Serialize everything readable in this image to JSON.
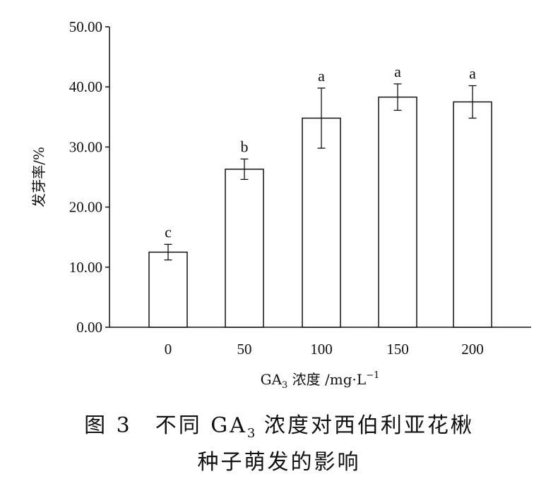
{
  "chart_data": {
    "type": "bar",
    "categories": [
      "0",
      "50",
      "100",
      "150",
      "200"
    ],
    "values": [
      12.5,
      26.3,
      34.8,
      38.3,
      37.5
    ],
    "error": [
      1.3,
      1.7,
      5.0,
      2.2,
      2.7
    ],
    "significance": [
      "c",
      "b",
      "a",
      "a",
      "a"
    ],
    "ylim": [
      0,
      50
    ],
    "yticks": [
      "0.00",
      "10.00",
      "20.00",
      "30.00",
      "40.00",
      "50.00"
    ],
    "ylabel": "发芽率/%",
    "xlabel": {
      "pre": "GA",
      "sub": "3",
      "mid": " 浓度 /mg·L",
      "sup": "−1"
    },
    "grid": false,
    "bar_fill": "#ffffff",
    "bar_stroke": "#111111"
  },
  "caption": {
    "line1_pre": "图 3　不同 GA",
    "line1_sub": "3",
    "line1_post": " 浓度对西伯利亚花楸",
    "line2": "种子萌发的影响"
  }
}
